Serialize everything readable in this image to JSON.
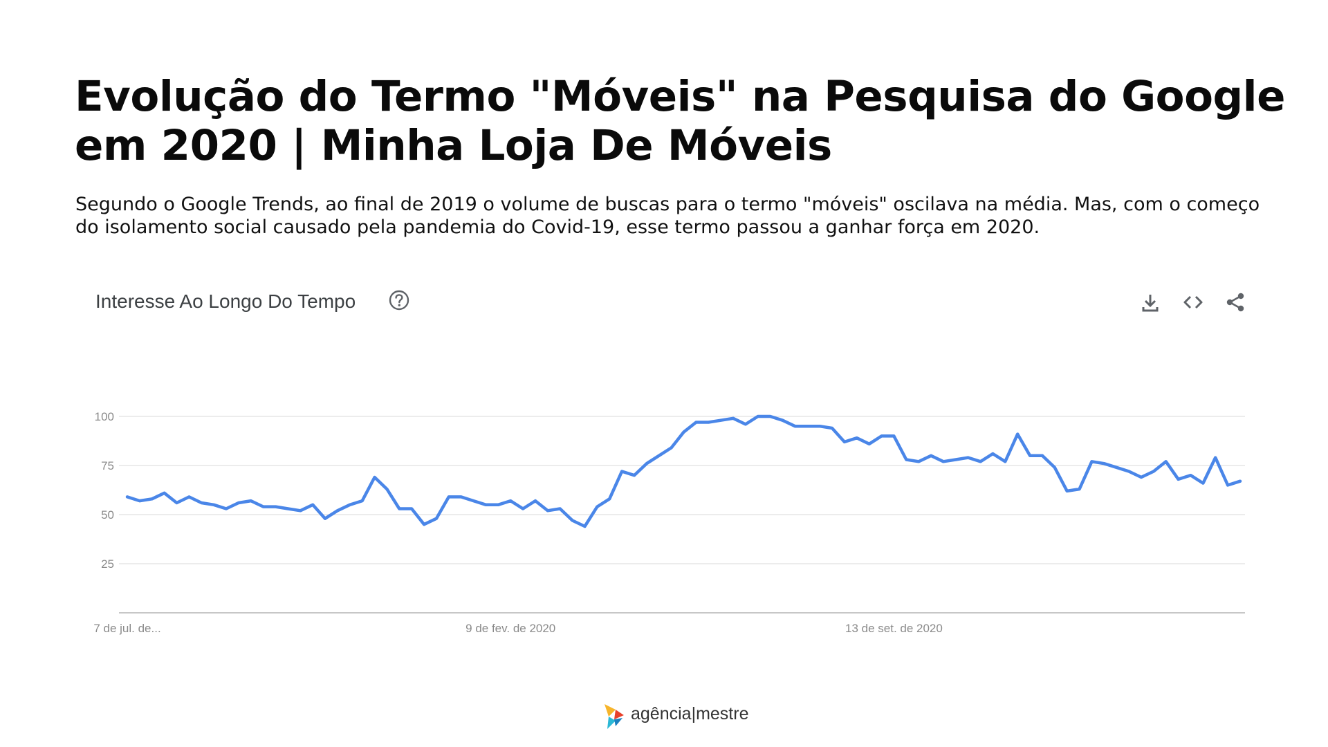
{
  "page": {
    "title": "Evolução do Termo \"Móveis\" na Pesquisa do Google em 2020 | Minha Loja De Móveis",
    "intro": "Segundo o Google Trends, ao final de 2019 o volume de buscas para o termo \"móveis\" oscilava na média. Mas, com o começo do isolamento social causado pela pandemia do Covid-19, esse termo passou a ganhar força em 2020."
  },
  "widget": {
    "title": "Interesse Ao Longo Do Tempo",
    "icons": [
      "help-circle-icon",
      "download-icon",
      "embed-code-icon",
      "share-icon"
    ]
  },
  "brand": {
    "name_left": "agência",
    "separator": "|",
    "name_right": "mestre",
    "colors": [
      "#f7b52b",
      "#e8412c",
      "#2bb8d6",
      "#1b7fbf"
    ]
  },
  "colors": {
    "line": "#4a86e8",
    "grid": "#e6e6e6",
    "baseline": "#c7c7c7",
    "tick_text": "#8a8a8a"
  },
  "chart_data": {
    "type": "line",
    "title": "",
    "xlabel": "",
    "ylabel": "",
    "ylim": [
      0,
      100
    ],
    "y_ticks": [
      25,
      50,
      75,
      100
    ],
    "x_tick_labels": [
      "7 de jul. de...",
      "9 de fev. de 2020",
      "13 de set. de 2020"
    ],
    "x_tick_indices": [
      0,
      31,
      62
    ],
    "grid": true,
    "legend": "none",
    "series": [
      {
        "values": [
          59,
          57,
          58,
          61,
          56,
          59,
          56,
          55,
          53,
          56,
          57,
          54,
          54,
          53,
          52,
          55,
          48,
          52,
          55,
          57,
          69,
          63,
          53,
          53,
          45,
          48,
          59,
          59,
          57,
          55,
          55,
          57,
          53,
          57,
          52,
          53,
          47,
          44,
          54,
          58,
          72,
          70,
          76,
          80,
          84,
          92,
          97,
          97,
          98,
          99,
          96,
          100,
          100,
          98,
          95,
          95,
          95,
          94,
          87,
          89,
          86,
          90,
          90,
          78,
          77,
          80,
          77,
          78,
          79,
          77,
          81,
          77,
          91,
          80,
          80,
          74,
          62,
          63,
          77,
          76,
          74,
          72,
          69,
          72,
          77,
          68,
          70,
          66,
          79,
          65,
          67
        ]
      }
    ]
  }
}
